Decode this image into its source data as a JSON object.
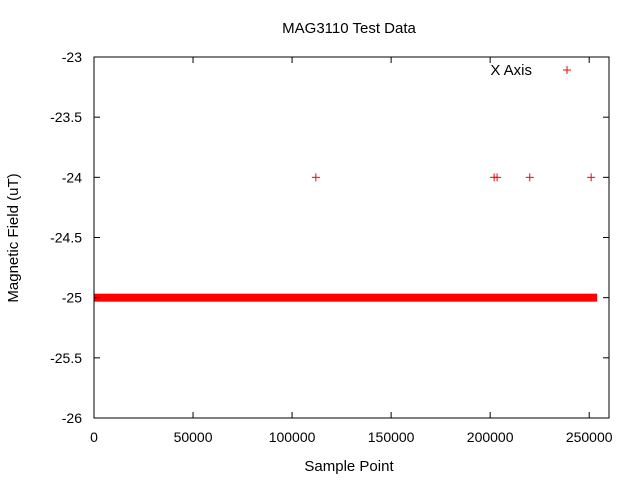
{
  "chart_data": {
    "type": "scatter",
    "title": "MAG3110 Test Data",
    "xlabel": "Sample Point",
    "ylabel": "Magnetic Field (uT)",
    "xlim": [
      0,
      260000
    ],
    "ylim": [
      -26,
      -23
    ],
    "xticks": [
      0,
      50000,
      100000,
      150000,
      200000,
      250000
    ],
    "yticks": [
      -26,
      -25.5,
      -25,
      -24.5,
      -24,
      -23.5,
      -23
    ],
    "grid": false,
    "legend_position": "top-right",
    "colors": {
      "series": "#ff0000",
      "axis": "#000000"
    },
    "series": [
      {
        "name": "X Axis",
        "marker": "plus",
        "dense_run": {
          "y": -25,
          "x_start": 0,
          "x_end": 254000
        },
        "points": [
          {
            "x": 112000,
            "y": -24
          },
          {
            "x": 202000,
            "y": -24
          },
          {
            "x": 203500,
            "y": -24
          },
          {
            "x": 220000,
            "y": -24
          },
          {
            "x": 251000,
            "y": -24
          }
        ]
      }
    ]
  }
}
